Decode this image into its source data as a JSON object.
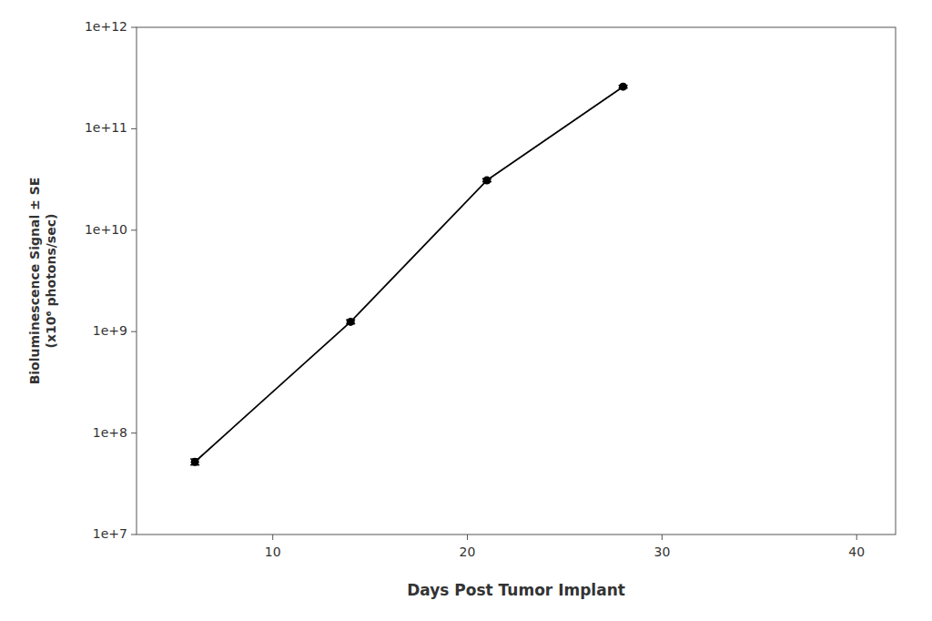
{
  "chart_data": {
    "type": "line",
    "x": [
      6,
      14,
      21,
      28
    ],
    "values": [
      52000000,
      1250000000,
      31000000000,
      260000000000
    ],
    "error_low": [
      3500000,
      55000000,
      1000000000,
      8000000000
    ],
    "error_high": [
      3500000,
      55000000,
      1200000000,
      8000000000
    ],
    "color": "#000000",
    "marker": "circle",
    "xlabel": "Days Post Tumor Implant",
    "ylabel": "Bioluminescence Signal ± SE\n(x10⁶ photons/sec)",
    "xlim": [
      3,
      42
    ],
    "ylim": [
      10000000,
      1000000000000
    ],
    "xticks": [
      10,
      20,
      30,
      40
    ],
    "yticks": [
      {
        "value": 10000000,
        "label": "1e+7"
      },
      {
        "value": 100000000,
        "label": "1e+8"
      },
      {
        "value": 1000000000,
        "label": "1e+9"
      },
      {
        "value": 10000000000,
        "label": "1e+10"
      },
      {
        "value": 100000000000,
        "label": "1e+11"
      },
      {
        "value": 1000000000000,
        "label": "1e+12"
      }
    ],
    "log": "y",
    "grid": false
  }
}
